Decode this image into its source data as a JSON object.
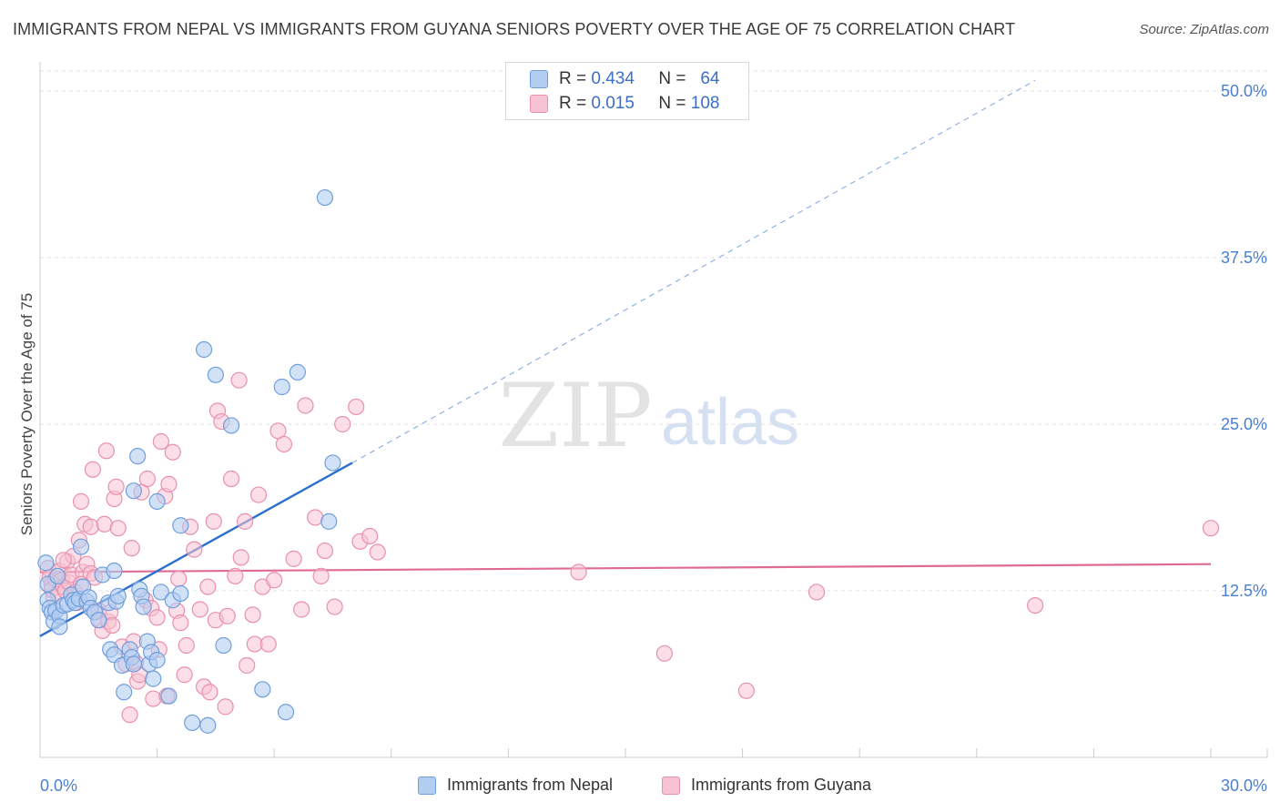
{
  "title": "IMMIGRANTS FROM NEPAL VS IMMIGRANTS FROM GUYANA SENIORS POVERTY OVER THE AGE OF 75 CORRELATION CHART",
  "source": "Source: ZipAtlas.com",
  "watermark": {
    "zip": "ZIP",
    "atlas": "atlas"
  },
  "legend": {
    "r_label": "R =",
    "n_label": "N =",
    "nepal": {
      "r": "0.434",
      "n": "64"
    },
    "guyana": {
      "r": "0.015",
      "n": "108"
    }
  },
  "bottom_legend": {
    "nepal": "Immigrants from Nepal",
    "guyana": "Immigrants from Guyana"
  },
  "colors": {
    "nepal_fill": "#b3cdf0",
    "nepal_stroke": "#6f9fdc",
    "nepal_line": "#2b6fcf",
    "guyana_fill": "#f7c3d4",
    "guyana_stroke": "#e890ae",
    "guyana_line": "#e06a96",
    "tick": "#4a7fd0"
  },
  "chart_data": {
    "type": "scatter",
    "title": "IMMIGRANTS FROM NEPAL VS IMMIGRANTS FROM GUYANA SENIORS POVERTY OVER THE AGE OF 75 CORRELATION CHART",
    "xlabel": "",
    "ylabel": "Seniors Poverty Over the Age of 75",
    "xlim": [
      0,
      30
    ],
    "ylim": [
      0,
      51.5
    ],
    "x_tick_labels": [
      "0.0%",
      "30.0%"
    ],
    "y_ticks": [
      12.5,
      25.0,
      37.5,
      50.0
    ],
    "y_tick_labels": [
      "12.5%",
      "25.0%",
      "37.5%",
      "50.0%"
    ],
    "grid": true,
    "legend_position": "top-center",
    "series": [
      {
        "name": "Immigrants from Nepal",
        "r": 0.434,
        "n": 64,
        "trend": {
          "x": [
            0,
            8.0
          ],
          "y": [
            9.1,
            22.1
          ],
          "dashed_extension_to": [
            25.5,
            50.8
          ]
        },
        "points": [
          [
            0.15,
            14.6
          ],
          [
            0.2,
            13.0
          ],
          [
            0.2,
            11.8
          ],
          [
            0.25,
            11.2
          ],
          [
            0.3,
            10.9
          ],
          [
            0.35,
            10.2
          ],
          [
            0.4,
            11.0
          ],
          [
            0.45,
            13.6
          ],
          [
            0.5,
            10.6
          ],
          [
            0.5,
            9.8
          ],
          [
            0.6,
            11.4
          ],
          [
            0.7,
            11.5
          ],
          [
            0.8,
            12.2
          ],
          [
            0.85,
            11.8
          ],
          [
            0.9,
            11.6
          ],
          [
            1.0,
            11.9
          ],
          [
            1.05,
            15.8
          ],
          [
            1.1,
            12.8
          ],
          [
            1.2,
            11.7
          ],
          [
            1.25,
            12.0
          ],
          [
            1.3,
            11.2
          ],
          [
            1.4,
            10.9
          ],
          [
            1.5,
            10.3
          ],
          [
            1.6,
            13.7
          ],
          [
            1.75,
            11.6
          ],
          [
            1.8,
            8.1
          ],
          [
            1.9,
            7.7
          ],
          [
            1.9,
            14.0
          ],
          [
            1.95,
            11.7
          ],
          [
            2.0,
            12.1
          ],
          [
            2.1,
            6.9
          ],
          [
            2.15,
            4.9
          ],
          [
            2.3,
            8.1
          ],
          [
            2.35,
            7.5
          ],
          [
            2.4,
            7.0
          ],
          [
            2.4,
            20.0
          ],
          [
            2.5,
            22.6
          ],
          [
            2.55,
            12.6
          ],
          [
            2.6,
            12.1
          ],
          [
            2.65,
            11.3
          ],
          [
            2.75,
            8.7
          ],
          [
            2.8,
            7.0
          ],
          [
            2.85,
            7.9
          ],
          [
            2.9,
            5.9
          ],
          [
            3.0,
            19.2
          ],
          [
            3.0,
            7.3
          ],
          [
            3.1,
            12.4
          ],
          [
            3.3,
            4.6
          ],
          [
            3.4,
            11.8
          ],
          [
            3.6,
            17.4
          ],
          [
            3.6,
            12.3
          ],
          [
            3.9,
            2.6
          ],
          [
            4.2,
            30.6
          ],
          [
            4.3,
            2.4
          ],
          [
            4.5,
            28.7
          ],
          [
            4.7,
            8.4
          ],
          [
            4.9,
            24.9
          ],
          [
            5.7,
            5.1
          ],
          [
            6.2,
            27.8
          ],
          [
            6.3,
            3.4
          ],
          [
            6.6,
            28.9
          ],
          [
            7.3,
            42.0
          ],
          [
            7.4,
            17.7
          ],
          [
            7.5,
            22.1
          ]
        ]
      },
      {
        "name": "Immigrants from Guyana",
        "r": 0.015,
        "n": 108,
        "trend": {
          "x": [
            0,
            30
          ],
          "y": [
            13.9,
            14.5
          ]
        },
        "points": [
          [
            0.2,
            14.2
          ],
          [
            0.25,
            13.5
          ],
          [
            0.3,
            13.0
          ],
          [
            0.3,
            12.6
          ],
          [
            0.35,
            12.0
          ],
          [
            0.4,
            13.4
          ],
          [
            0.45,
            12.3
          ],
          [
            0.5,
            14.0
          ],
          [
            0.55,
            13.3
          ],
          [
            0.6,
            12.8
          ],
          [
            0.65,
            12.5
          ],
          [
            0.7,
            14.7
          ],
          [
            0.75,
            13.1
          ],
          [
            0.8,
            13.7
          ],
          [
            0.85,
            15.1
          ],
          [
            0.9,
            12.4
          ],
          [
            0.95,
            11.6
          ],
          [
            1.0,
            16.3
          ],
          [
            1.05,
            19.2
          ],
          [
            1.1,
            13.9
          ],
          [
            1.15,
            17.5
          ],
          [
            1.2,
            14.5
          ],
          [
            1.3,
            17.3
          ],
          [
            1.3,
            13.8
          ],
          [
            1.35,
            21.6
          ],
          [
            1.4,
            13.5
          ],
          [
            1.5,
            11.0
          ],
          [
            1.55,
            10.3
          ],
          [
            1.6,
            9.5
          ],
          [
            1.65,
            17.5
          ],
          [
            1.7,
            23.0
          ],
          [
            1.75,
            10.2
          ],
          [
            1.8,
            10.9
          ],
          [
            1.85,
            9.9
          ],
          [
            1.9,
            19.4
          ],
          [
            1.95,
            20.3
          ],
          [
            2.0,
            17.2
          ],
          [
            2.1,
            8.3
          ],
          [
            2.2,
            7.0
          ],
          [
            2.3,
            3.2
          ],
          [
            2.35,
            15.7
          ],
          [
            2.4,
            8.7
          ],
          [
            2.45,
            7.1
          ],
          [
            2.5,
            5.7
          ],
          [
            2.55,
            6.2
          ],
          [
            2.6,
            19.9
          ],
          [
            2.7,
            11.8
          ],
          [
            2.75,
            20.9
          ],
          [
            2.85,
            11.2
          ],
          [
            2.9,
            4.4
          ],
          [
            3.0,
            10.5
          ],
          [
            3.05,
            8.1
          ],
          [
            3.1,
            23.7
          ],
          [
            3.2,
            19.6
          ],
          [
            3.25,
            4.6
          ],
          [
            3.3,
            20.5
          ],
          [
            3.4,
            22.9
          ],
          [
            3.5,
            11.0
          ],
          [
            3.55,
            13.4
          ],
          [
            3.6,
            10.1
          ],
          [
            3.7,
            6.2
          ],
          [
            3.75,
            8.4
          ],
          [
            3.85,
            17.3
          ],
          [
            3.95,
            15.6
          ],
          [
            4.1,
            11.1
          ],
          [
            4.2,
            5.3
          ],
          [
            4.3,
            12.8
          ],
          [
            4.35,
            4.9
          ],
          [
            4.45,
            17.7
          ],
          [
            4.5,
            10.3
          ],
          [
            4.55,
            26.0
          ],
          [
            4.65,
            25.2
          ],
          [
            4.75,
            3.8
          ],
          [
            4.8,
            10.6
          ],
          [
            4.9,
            20.9
          ],
          [
            5.0,
            13.6
          ],
          [
            5.1,
            28.3
          ],
          [
            5.15,
            15.0
          ],
          [
            5.25,
            17.7
          ],
          [
            5.3,
            6.9
          ],
          [
            5.45,
            10.7
          ],
          [
            5.5,
            8.5
          ],
          [
            5.6,
            19.7
          ],
          [
            5.7,
            12.8
          ],
          [
            5.85,
            8.5
          ],
          [
            6.0,
            13.3
          ],
          [
            6.1,
            24.5
          ],
          [
            6.25,
            23.5
          ],
          [
            6.5,
            14.9
          ],
          [
            6.7,
            11.1
          ],
          [
            6.8,
            26.4
          ],
          [
            7.05,
            18.0
          ],
          [
            7.2,
            13.6
          ],
          [
            7.3,
            15.5
          ],
          [
            7.55,
            11.3
          ],
          [
            7.75,
            25.0
          ],
          [
            8.1,
            26.3
          ],
          [
            8.2,
            16.2
          ],
          [
            8.45,
            16.6
          ],
          [
            8.65,
            15.4
          ],
          [
            13.8,
            13.9
          ],
          [
            16.0,
            7.8
          ],
          [
            18.1,
            5.0
          ],
          [
            19.9,
            12.4
          ],
          [
            25.5,
            11.4
          ],
          [
            30.0,
            17.2
          ],
          [
            1.05,
            13.0
          ],
          [
            0.6,
            14.8
          ]
        ]
      }
    ]
  }
}
